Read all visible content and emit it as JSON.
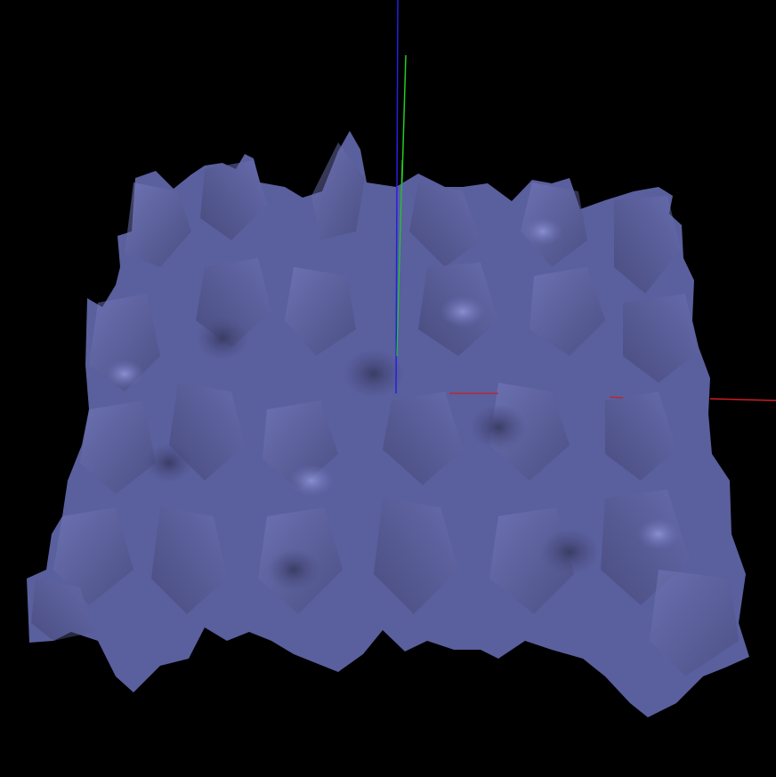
{
  "viewport": {
    "background": "#000000",
    "terrain": {
      "base_color": "#5a5f9e",
      "light_color": "#7d82c6",
      "dark_color": "#3b3e66"
    },
    "axes": {
      "x_color": "#cc1f1f",
      "y_color": "#22cc22",
      "z_color": "#2222dd"
    }
  }
}
